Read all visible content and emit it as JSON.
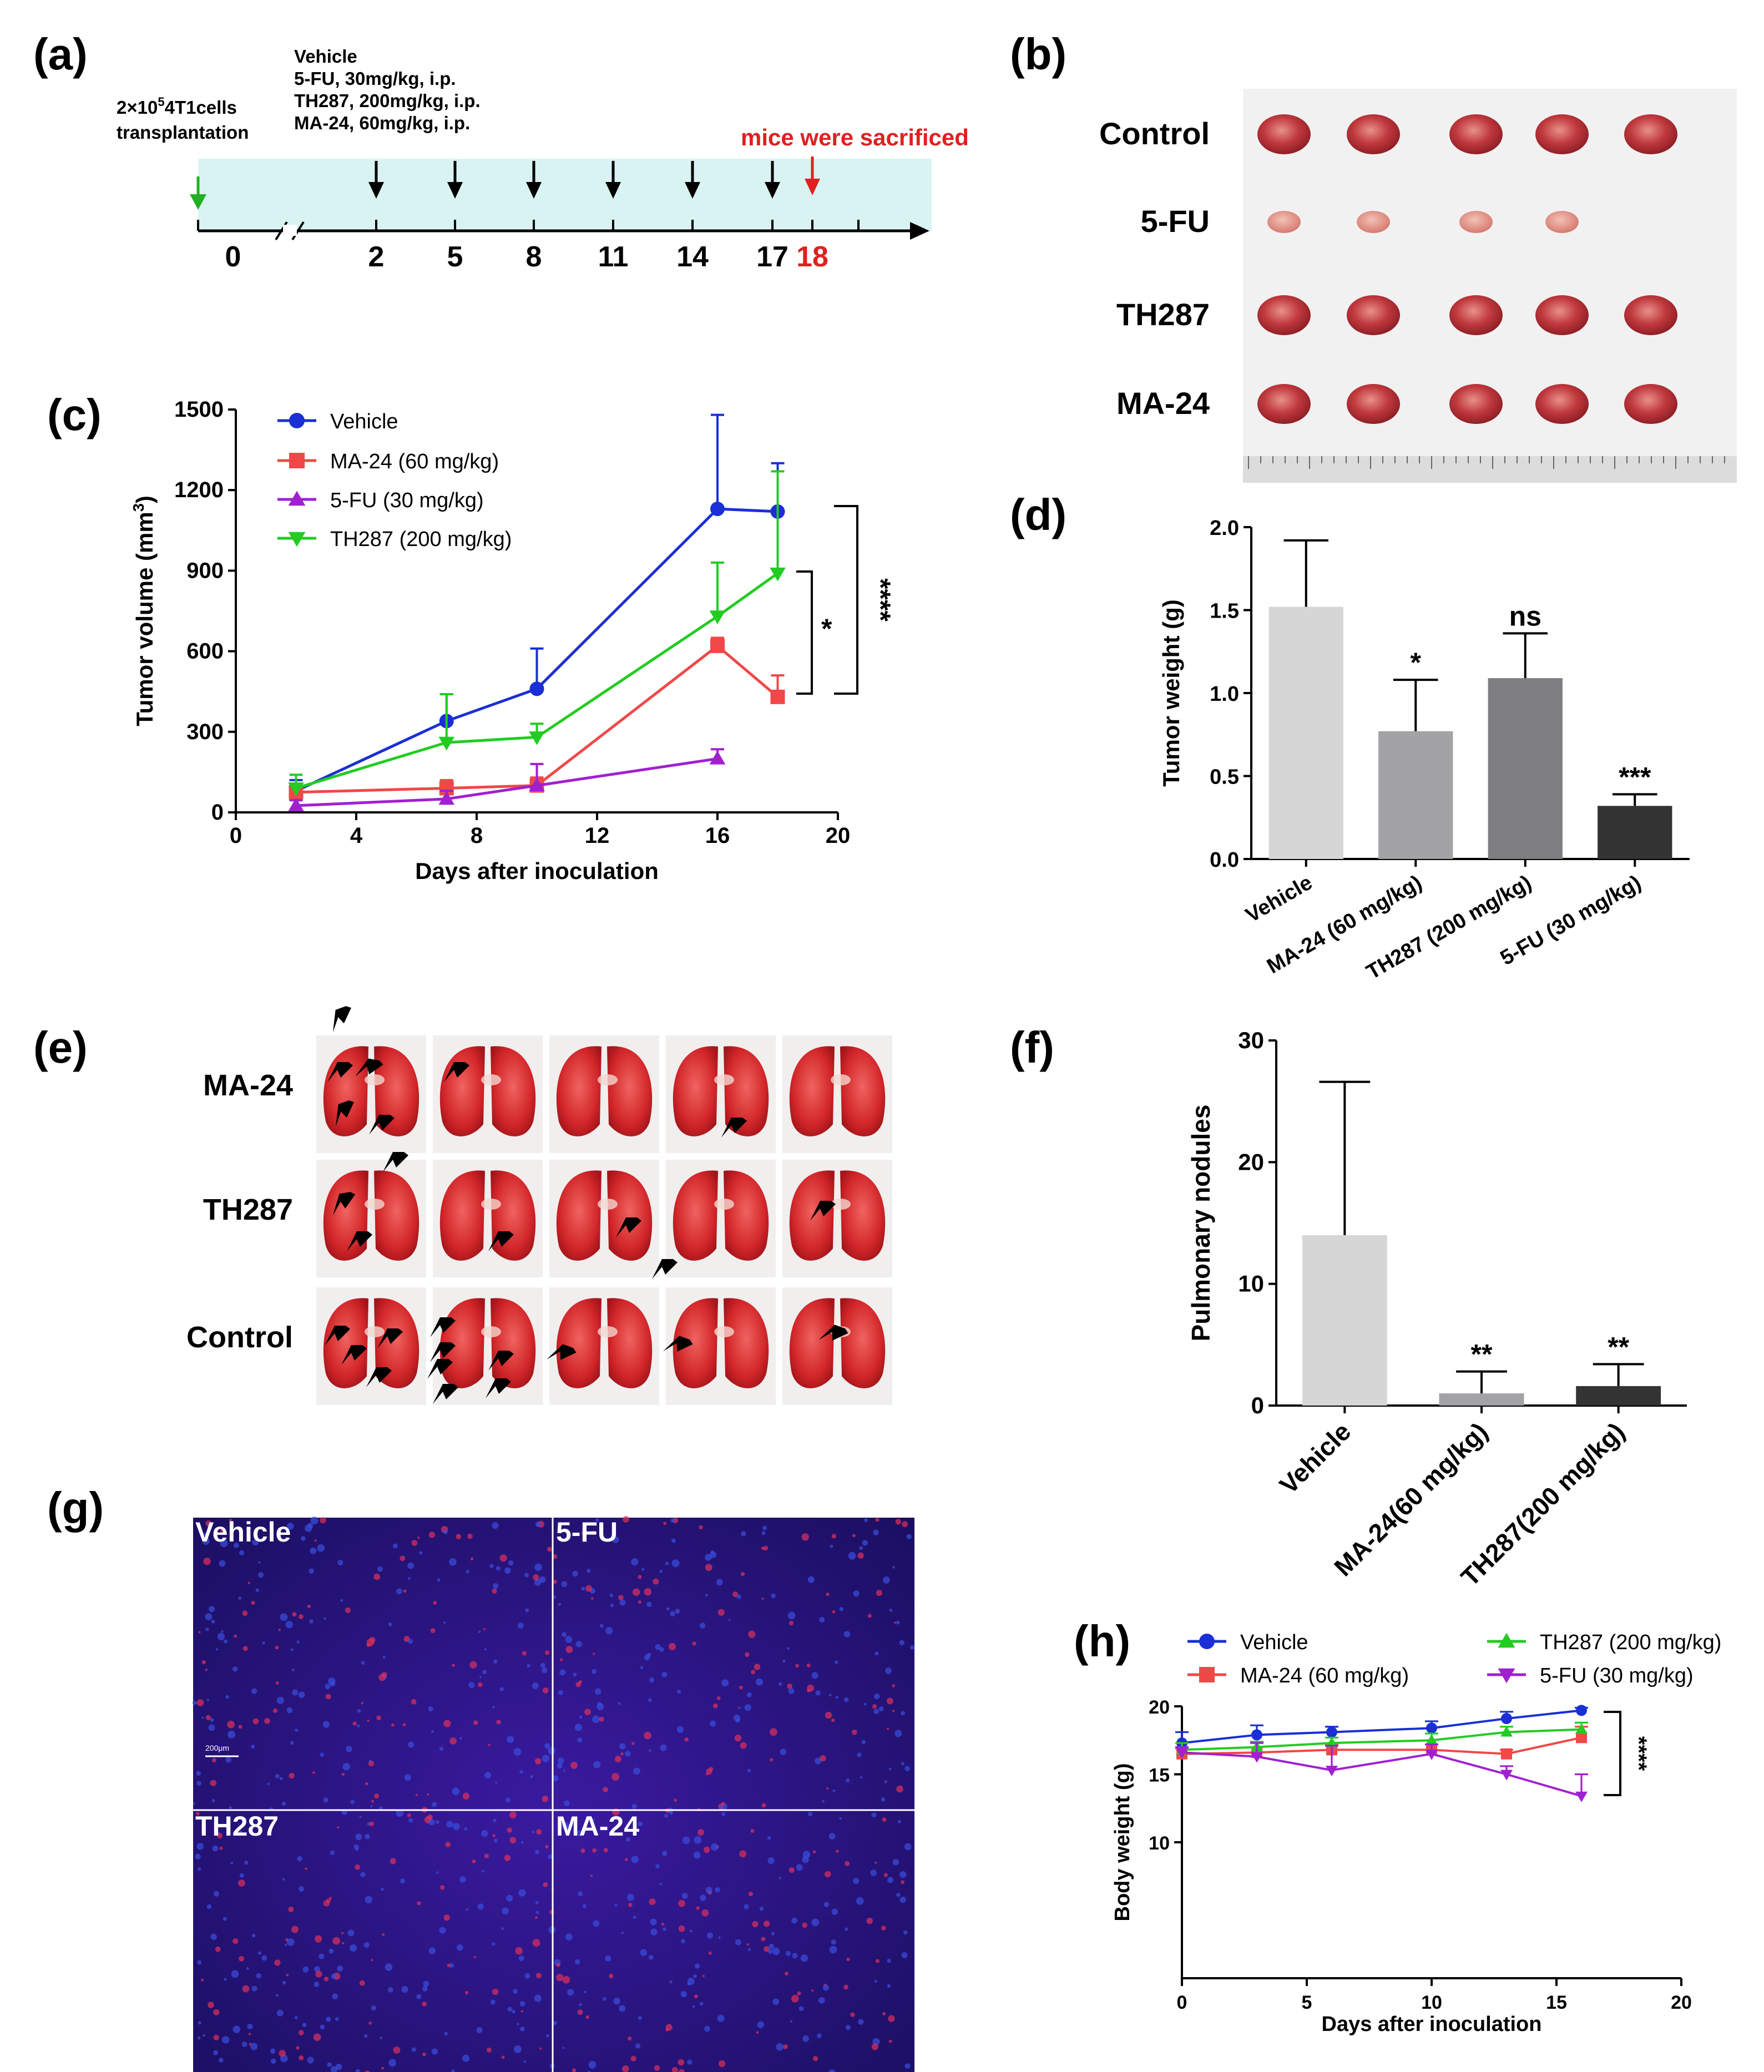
{
  "panel_labels": {
    "a": "(a)",
    "b": "(b)",
    "c": "(c)",
    "d": "(d)",
    "e": "(e)",
    "f": "(f)",
    "g": "(g)",
    "h": "(h)"
  },
  "timeline": {
    "cells_line1": "2×10",
    "cells_sup": "5",
    "cells_line1b": "4T1cells",
    "cells_line2": "transplantation",
    "treatment_lines": [
      "Vehicle",
      "5-FU, 30mg/kg, i.p.",
      "TH287, 200mg/kg, i.p.",
      "MA-24, 60mg/kg, i.p."
    ],
    "sacrifice_text": "mice were sacrificed",
    "days": [
      "0",
      "2",
      "5",
      "8",
      "11",
      "14",
      "17",
      "18"
    ],
    "colors": {
      "band": "#d8f3f1",
      "start_arrow": "#22b022",
      "sacrifice": "#e02020"
    }
  },
  "photo_b": {
    "rows": [
      "Control",
      "5-FU",
      "TH287",
      "MA-24"
    ],
    "counts": [
      5,
      4,
      5,
      5
    ]
  },
  "photo_e": {
    "rows": [
      "MA-24",
      "TH287",
      "Control"
    ]
  },
  "photo_g": {
    "quadrants": [
      "Vehicle",
      "5-FU",
      "TH287",
      "MA-24"
    ],
    "scale_text": "200μm"
  },
  "chart_data": [
    {
      "id": "c",
      "type": "line",
      "xlabel": "Days after inoculation",
      "ylabel": "Tumor volume (mm",
      "ylabel_sup": "3",
      "ylabel_end": ")",
      "xlim": [
        0,
        20
      ],
      "ylim": [
        0,
        1500
      ],
      "xticks": [
        0,
        4,
        8,
        12,
        16,
        20
      ],
      "yticks": [
        0,
        300,
        600,
        900,
        1200,
        1500
      ],
      "series": [
        {
          "name": "Vehicle",
          "color": "#1a2fd6",
          "marker": "circle",
          "x": [
            2,
            7,
            10,
            16,
            18
          ],
          "y": [
            80,
            340,
            460,
            1130,
            1120
          ],
          "err": [
            40,
            100,
            150,
            350,
            180
          ]
        },
        {
          "name": "MA-24 (60 mg/kg)",
          "color": "#f04848",
          "marker": "square",
          "x": [
            2,
            7,
            10,
            16,
            18
          ],
          "y": [
            75,
            90,
            100,
            620,
            430
          ],
          "err": [
            30,
            30,
            30,
            30,
            80
          ]
        },
        {
          "name": "5-FU (30 mg/kg)",
          "color": "#a020d0",
          "marker": "triangle",
          "x": [
            2,
            7,
            10,
            16
          ],
          "y": [
            25,
            50,
            100,
            200
          ],
          "err": [
            20,
            30,
            80,
            35
          ]
        },
        {
          "name": "TH287 (200 mg/kg)",
          "color": "#22cc22",
          "marker": "triangle-down",
          "x": [
            2,
            7,
            10,
            16,
            18
          ],
          "y": [
            90,
            260,
            280,
            730,
            890
          ],
          "err": [
            50,
            180,
            50,
            200,
            380
          ]
        }
      ],
      "annotations": [
        "*",
        "****"
      ]
    },
    {
      "id": "d",
      "type": "bar",
      "ylabel": "Tumor weight (g)",
      "ylim": [
        0,
        2.0
      ],
      "yticks": [
        "0.0",
        "0.5",
        "1.0",
        "1.5",
        "2.0"
      ],
      "categories": [
        "Vehicle",
        "MA-24 (60 mg/kg)",
        "TH287 (200 mg/kg)",
        "5-FU (30 mg/kg)"
      ],
      "values": [
        1.52,
        0.77,
        1.09,
        0.32
      ],
      "err": [
        0.4,
        0.31,
        0.27,
        0.07
      ],
      "sig": [
        "",
        "*",
        "ns",
        "***"
      ],
      "colors": [
        "#d6d6d6",
        "#a3a3a6",
        "#7e7e80",
        "#333333"
      ]
    },
    {
      "id": "f",
      "type": "bar",
      "ylabel": "Pulmonary nodules",
      "ylim": [
        0,
        30
      ],
      "yticks": [
        "0",
        "10",
        "20",
        "30"
      ],
      "categories": [
        "Vehicle",
        "MA-24(60 mg/kg)",
        "TH287(200 mg/kg)"
      ],
      "values": [
        14,
        1,
        1.6
      ],
      "err": [
        12.6,
        1.8,
        1.8
      ],
      "sig": [
        "",
        "**",
        "**"
      ],
      "colors": [
        "#d6d6d6",
        "#a3a3a6",
        "#333333"
      ]
    },
    {
      "id": "h",
      "type": "line",
      "xlabel": "Days after inoculation",
      "ylabel": "Body weight (g)",
      "xlim": [
        0,
        20
      ],
      "ylim": [
        0,
        20
      ],
      "xticks": [
        0,
        5,
        10,
        15,
        20
      ],
      "yticks": [
        10,
        15,
        20
      ],
      "series": [
        {
          "name": "Vehicle",
          "color": "#1a2fd6",
          "marker": "circle",
          "x": [
            0,
            3,
            6,
            10,
            13,
            16
          ],
          "y": [
            17.3,
            17.9,
            18.1,
            18.4,
            19.1,
            19.7
          ],
          "err": [
            0.8,
            0.7,
            0.4,
            0.5,
            0.5,
            0.2
          ]
        },
        {
          "name": "MA-24 (60 mg/kg)",
          "color": "#f04848",
          "marker": "square",
          "x": [
            0,
            3,
            6,
            10,
            13,
            16
          ],
          "y": [
            16.5,
            16.6,
            16.8,
            16.8,
            16.5,
            17.7
          ],
          "err": [
            0.4,
            0.4,
            0.4,
            0.4,
            0.3,
            0.8
          ]
        },
        {
          "name": "TH287 (200 mg/kg)",
          "color": "#22cc22",
          "marker": "triangle",
          "x": [
            0,
            3,
            6,
            10,
            13,
            16
          ],
          "y": [
            16.8,
            17.0,
            17.3,
            17.5,
            18.1,
            18.3
          ],
          "err": [
            0.5,
            0.4,
            0.4,
            0.5,
            0.4,
            0.5
          ]
        },
        {
          "name": "5-FU (30 mg/kg)",
          "color": "#a020d0",
          "marker": "triangle-down",
          "x": [
            0,
            3,
            6,
            10,
            13,
            16
          ],
          "y": [
            16.6,
            16.3,
            15.3,
            16.5,
            15.0,
            13.4
          ],
          "err": [
            0.4,
            1.0,
            1.8,
            0.7,
            0.6,
            1.6
          ]
        }
      ],
      "annotations": [
        "****"
      ]
    }
  ]
}
